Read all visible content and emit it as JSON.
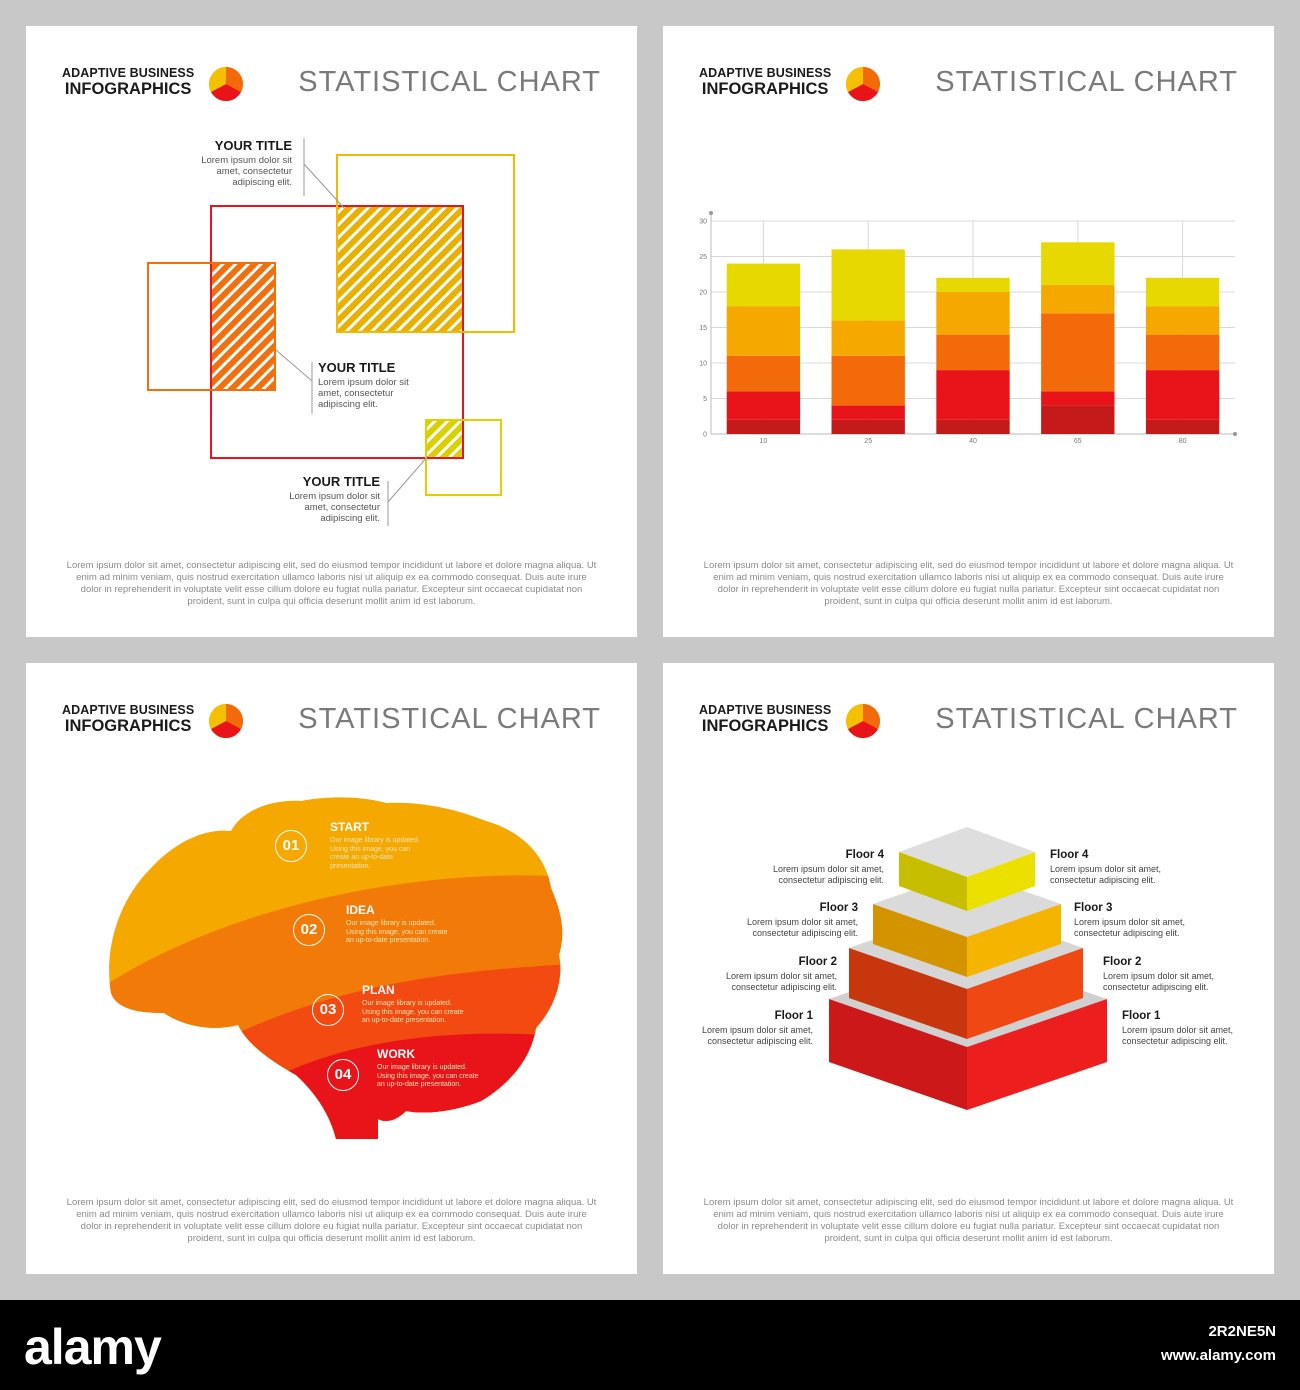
{
  "header": {
    "brand_line1": "ADAPTIVE BUSINESS",
    "brand_line2": "INFOGRAPHICS",
    "chart_title": "STATISTICAL CHART"
  },
  "footer_text": "Lorem ipsum dolor sit amet, consectetur adipiscing elit, sed do eiusmod tempor incididunt ut labore et dolore magna aliqua. Ut enim ad minim veniam, quis nostrud exercitation ullamco laboris nisi ut aliquip ex ea commodo consequat. Duis aute irure dolor in reprehenderit in voluptate velit esse cillum dolore eu fugiat nulla pariatur. Excepteur sint occaecat cupidatat non proident, sunt in culpa qui officia deserunt mollit anim id est laborum.",
  "overlap_panel": {
    "callouts": [
      {
        "title": "YOUR TITLE",
        "text": "Lorem ipsum dolor sit amet, consectetur adipiscing elit."
      },
      {
        "title": "YOUR TITLE",
        "text": "Lorem ipsum dolor sit amet, consectetur adipiscing elit."
      },
      {
        "title": "YOUR TITLE",
        "text": "Lorem ipsum dolor sit amet, consectetur adipiscing elit."
      }
    ]
  },
  "brain_panel": {
    "steps": [
      {
        "num": "01",
        "label": "START",
        "text": "Our image library is updated. Using this image, you can create an up-to-date presentation."
      },
      {
        "num": "02",
        "label": "IDEA",
        "text": "Our image library is updated. Using this image, you can create an up-to-date presentation."
      },
      {
        "num": "03",
        "label": "PLAN",
        "text": "Our image library is updated. Using this image, you can create an up-to-date presentation."
      },
      {
        "num": "04",
        "label": "WORK",
        "text": "Our image library is updated. Using this image, you can create an up-to-date presentation."
      }
    ]
  },
  "pyramid_panel": {
    "floors": [
      {
        "label": "Floor 4",
        "text": "Lorem ipsum dolor sit amet, consectetur adipiscing elit."
      },
      {
        "label": "Floor 3",
        "text": "Lorem ipsum dolor sit amet, consectetur adipiscing elit."
      },
      {
        "label": "Floor 2",
        "text": "Lorem ipsum dolor sit amet, consectetur adipiscing elit."
      },
      {
        "label": "Floor 1",
        "text": "Lorem ipsum dolor sit amet, consectetur adipiscing elit."
      }
    ]
  },
  "chart_data": {
    "type": "bar",
    "stacked": true,
    "categories": [
      "10",
      "25",
      "40",
      "65",
      "80"
    ],
    "ylim": [
      0,
      30
    ],
    "yticks": [
      0,
      5,
      10,
      15,
      20,
      25,
      30
    ],
    "grid": true,
    "series": [
      {
        "color": "#c41a1a",
        "values": [
          2,
          2,
          2,
          4,
          2
        ]
      },
      {
        "color": "#e8141a",
        "values": [
          4,
          2,
          7,
          2,
          7
        ]
      },
      {
        "color": "#f26a0a",
        "values": [
          5,
          7,
          5,
          11,
          5
        ]
      },
      {
        "color": "#f5a800",
        "values": [
          7,
          5,
          6,
          4,
          4
        ]
      },
      {
        "color": "#e6d800",
        "values": [
          6,
          10,
          2,
          6,
          4
        ]
      }
    ]
  },
  "watermark": {
    "logo": "alamy",
    "image_id": "2R2NE5N",
    "site": "www.alamy.com"
  },
  "colors": {
    "yellow": "#e6d800",
    "amber": "#f5a800",
    "orange": "#f26a0a",
    "red": "#e8141a"
  }
}
